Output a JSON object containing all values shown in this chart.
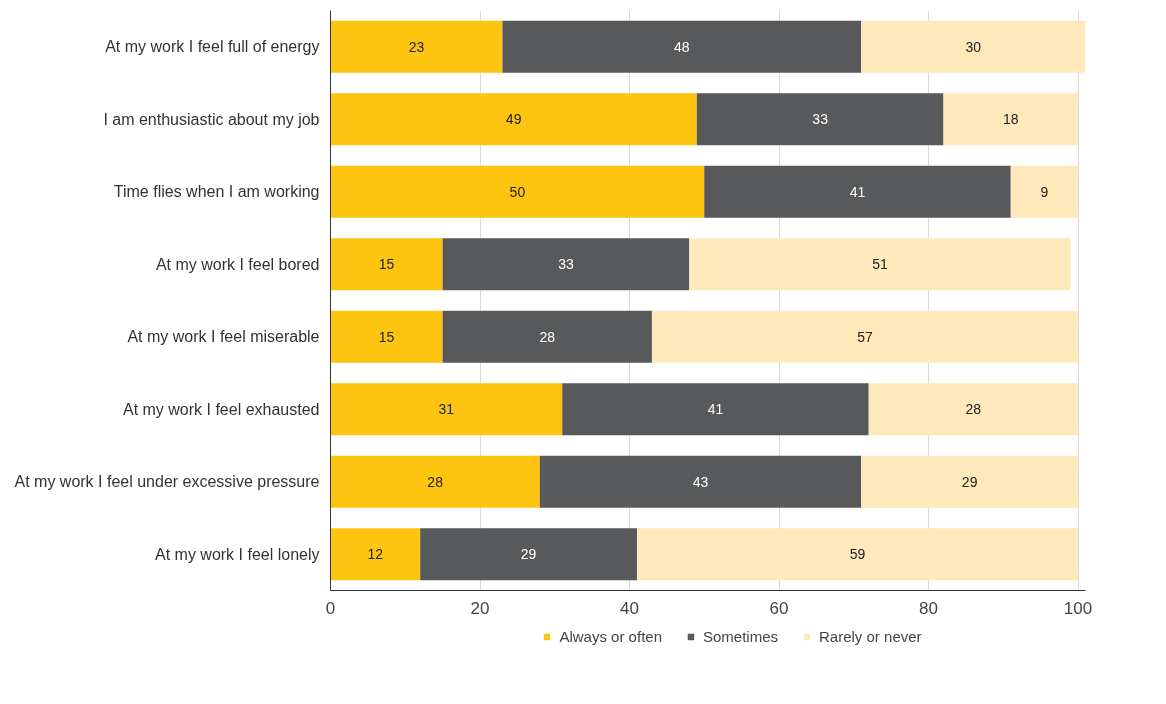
{
  "chart_data": {
    "type": "bar",
    "orientation": "horizontal",
    "stacked": true,
    "data_labels": true,
    "categories": [
      "At my work I feel full of energy",
      "I am enthusiastic about my job",
      "Time flies when I am working",
      "At my work I feel bored",
      "At my work I feel miserable",
      "At my work I feel exhausted",
      "At my work I feel under excessive pressure",
      "At my work I feel lonely"
    ],
    "series": [
      {
        "name": "Always or often",
        "color": "#fdc50f",
        "values": [
          23,
          49,
          50,
          15,
          15,
          31,
          28,
          12
        ]
      },
      {
        "name": "Sometimes",
        "color": "#58595b",
        "values": [
          48,
          33,
          41,
          33,
          28,
          41,
          43,
          29
        ]
      },
      {
        "name": "Rarely or never",
        "color": "#ffe9bb",
        "values": [
          30,
          18,
          9,
          51,
          57,
          28,
          29,
          59
        ]
      }
    ],
    "xlim": [
      0,
      101
    ],
    "xticks": [
      0,
      20,
      40,
      60,
      80,
      100
    ],
    "grid": "x",
    "legend": "bottom"
  }
}
